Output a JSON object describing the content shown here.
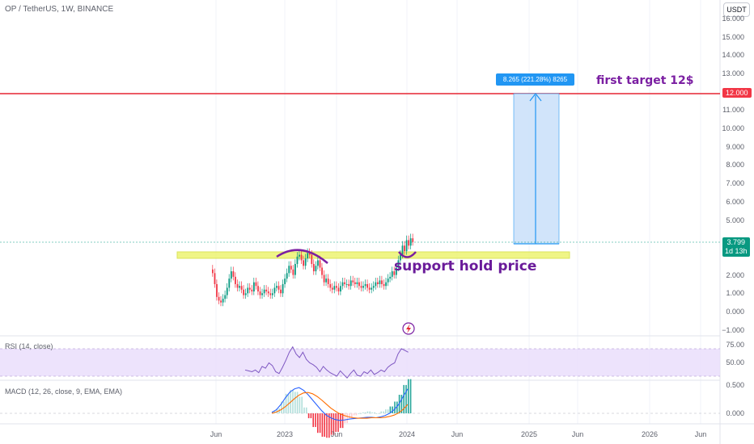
{
  "header": {
    "symbol_line": "OP / TetherUS, 1W, BINANCE",
    "currency": "USDT"
  },
  "price_axis": {
    "labels": [
      "16.000",
      "15.000",
      "14.000",
      "13.000",
      "11.000",
      "10.000",
      "9.000",
      "8.000",
      "7.000",
      "6.000",
      "5.000",
      "2.000",
      "1.000",
      "0.000",
      "−1.000"
    ],
    "values": [
      16,
      15,
      14,
      13,
      11,
      10,
      9,
      8,
      7,
      6,
      5,
      2,
      1,
      0,
      -1
    ]
  },
  "badges": {
    "target_price": "12.000",
    "current_price": "3.799",
    "countdown": "1d 13h",
    "target_color": "#f23645",
    "current_color": "#089981"
  },
  "annotations": {
    "target_text": "first target 12$",
    "support_text": "support hold price",
    "measure_text": "8.265 (221.28%) 8265"
  },
  "rsi": {
    "title": "RSI (14, close)",
    "axis_labels": [
      "75.00",
      "50.00"
    ]
  },
  "macd": {
    "title": "MACD (12, 26, close, 9, EMA, EMA)",
    "axis_labels": [
      "0.500",
      "0.000"
    ]
  },
  "time_axis": {
    "labels": [
      "Jun",
      "2023",
      "Jun",
      "2024",
      "Jun",
      "2025",
      "Jun",
      "2026",
      "Jun"
    ]
  },
  "colors": {
    "accent": "#2196f3",
    "up": "#089981",
    "down": "#f23645",
    "drawing": "#7b1fa2"
  },
  "icons": {
    "alert": "lightning-icon"
  }
}
